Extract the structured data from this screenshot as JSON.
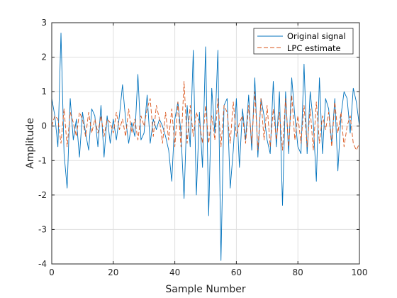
{
  "chart_data": {
    "type": "line",
    "xlabel": "Sample Number",
    "ylabel": "Amplitude",
    "xlim": [
      0,
      100
    ],
    "ylim": [
      -4,
      3
    ],
    "xticks": [
      0,
      20,
      40,
      60,
      80,
      100
    ],
    "yticks": [
      -4,
      -3,
      -2,
      -1,
      0,
      1,
      2,
      3
    ],
    "grid": true,
    "legend_position": "top-right",
    "series": [
      {
        "name": "Original signal",
        "color": "#0072bd",
        "style": "solid",
        "x": [
          0,
          1,
          2,
          3,
          4,
          5,
          6,
          7,
          8,
          9,
          10,
          11,
          12,
          13,
          14,
          15,
          16,
          17,
          18,
          19,
          20,
          21,
          22,
          23,
          24,
          25,
          26,
          27,
          28,
          29,
          30,
          31,
          32,
          33,
          34,
          35,
          36,
          37,
          38,
          39,
          40,
          41,
          42,
          43,
          44,
          45,
          46,
          47,
          48,
          49,
          50,
          51,
          52,
          53,
          54,
          55,
          56,
          57,
          58,
          59,
          60,
          61,
          62,
          63,
          64,
          65,
          66,
          67,
          68,
          69,
          70,
          71,
          72,
          73,
          74,
          75,
          76,
          77,
          78,
          79,
          80,
          81,
          82,
          83,
          84,
          85,
          86,
          87,
          88,
          89,
          90,
          91,
          92,
          93,
          94,
          95,
          96,
          97,
          98,
          99,
          100
        ],
        "values": [
          0.8,
          0.3,
          -0.6,
          2.7,
          -0.8,
          -1.8,
          0.8,
          -0.4,
          0.2,
          -0.9,
          0.4,
          -0.2,
          -0.7,
          0.5,
          0.3,
          -0.6,
          0.6,
          -0.9,
          0.3,
          -0.5,
          0.2,
          -0.4,
          0.3,
          1.2,
          0.2,
          -0.5,
          0.1,
          -0.3,
          1.5,
          -0.4,
          -0.2,
          0.9,
          -0.5,
          0.2,
          -0.1,
          0.2,
          0.0,
          -0.3,
          -0.7,
          -1.6,
          0.2,
          0.7,
          -0.2,
          -2.1,
          0.6,
          -0.6,
          2.2,
          -2.0,
          0.4,
          -1.2,
          2.3,
          -2.6,
          1.1,
          -0.2,
          2.2,
          -3.9,
          0.6,
          0.8,
          -1.8,
          -0.7,
          0.8,
          -1.2,
          0.5,
          -0.4,
          0.9,
          -0.7,
          1.4,
          -0.9,
          0.8,
          0.3,
          -0.4,
          -0.8,
          1.3,
          -0.6,
          1.0,
          -2.3,
          1.0,
          -0.8,
          1.4,
          0.3,
          -0.6,
          -0.8,
          1.8,
          -0.8,
          1.0,
          0.1,
          -1.6,
          1.4,
          -0.8,
          0.8,
          0.5,
          -0.5,
          0.8,
          -1.3,
          0.3,
          1.0,
          0.8,
          -0.2,
          1.1,
          0.7,
          0.0
        ]
      },
      {
        "name": "LPC estimate",
        "color": "#d95319",
        "style": "dashed",
        "x": [
          0,
          1,
          2,
          3,
          4,
          5,
          6,
          7,
          8,
          9,
          10,
          11,
          12,
          13,
          14,
          15,
          16,
          17,
          18,
          19,
          20,
          21,
          22,
          23,
          24,
          25,
          26,
          27,
          28,
          29,
          30,
          31,
          32,
          33,
          34,
          35,
          36,
          37,
          38,
          39,
          40,
          41,
          42,
          43,
          44,
          45,
          46,
          47,
          48,
          49,
          50,
          51,
          52,
          53,
          54,
          55,
          56,
          57,
          58,
          59,
          60,
          61,
          62,
          63,
          64,
          65,
          66,
          67,
          68,
          69,
          70,
          71,
          72,
          73,
          74,
          75,
          76,
          77,
          78,
          79,
          80,
          81,
          82,
          83,
          84,
          85,
          86,
          87,
          88,
          89,
          90,
          91,
          92,
          93,
          94,
          95,
          96,
          97,
          98,
          99,
          100
        ],
        "values": [
          0.0,
          0.3,
          0.2,
          -0.5,
          0.5,
          -0.6,
          0.4,
          0.1,
          -0.3,
          0.4,
          0.2,
          -0.3,
          0.4,
          -0.2,
          0.2,
          -0.2,
          0.3,
          -0.3,
          0.2,
          0.1,
          -0.2,
          0.4,
          -0.1,
          0.2,
          -0.3,
          0.5,
          -0.2,
          0.2,
          -0.4,
          0.3,
          0.0,
          0.5,
          0.8,
          -0.3,
          0.6,
          0.2,
          -0.5,
          0.4,
          -0.4,
          0.5,
          -0.6,
          0.7,
          -0.6,
          1.3,
          -0.5,
          0.6,
          -0.3,
          0.4,
          0.1,
          -0.5,
          0.6,
          -0.5,
          0.3,
          -0.4,
          0.8,
          -0.6,
          0.6,
          0.4,
          -0.5,
          0.7,
          -0.3,
          0.1,
          0.3,
          -0.5,
          0.6,
          -0.5,
          1.0,
          -0.7,
          0.8,
          -0.4,
          0.6,
          -0.6,
          0.5,
          -0.4,
          0.4,
          -0.7,
          0.8,
          -0.6,
          0.9,
          -0.4,
          0.3,
          -0.5,
          0.6,
          -0.6,
          0.5,
          -0.7,
          0.7,
          -0.5,
          0.3,
          -0.1,
          0.4,
          -0.6,
          0.7,
          -0.2,
          0.4,
          -0.6,
          0.0,
          0.3,
          -0.5,
          -0.7,
          -0.5
        ]
      }
    ]
  }
}
